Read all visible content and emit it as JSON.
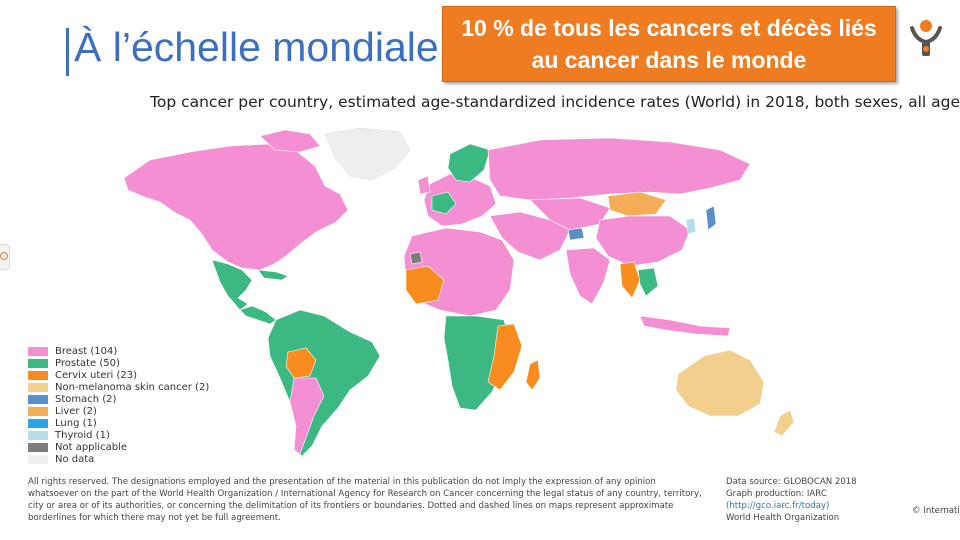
{
  "slide": {
    "title": "À l’échelle mondiale",
    "banner_line1": "10 % de tous les cancers et décès liés",
    "banner_line2": "au cancer dans le monde",
    "subtitle": "Top cancer per country, estimated age-standardized incidence rates (World) in 2018, both sexes, all ages"
  },
  "legend": [
    {
      "label": "Breast (104)",
      "color": "#f48fd3"
    },
    {
      "label": "Prostate (50)",
      "color": "#3cb883"
    },
    {
      "label": "Cervix uteri (23)",
      "color": "#f98c1e"
    },
    {
      "label": "Non-melanoma skin cancer (2)",
      "color": "#f2cf8c"
    },
    {
      "label": "Stomach (2)",
      "color": "#5b8fc7"
    },
    {
      "label": "Liver (2)",
      "color": "#f6ad58"
    },
    {
      "label": "Lung (1)",
      "color": "#2aa3e8"
    },
    {
      "label": "Thyroid (1)",
      "color": "#b6dcea"
    },
    {
      "label": "Not applicable",
      "color": "#7d7d7d"
    },
    {
      "label": "No data",
      "color": "#eeeeee"
    }
  ],
  "footer": {
    "disclaimer": "All rights reserved. The designations employed and the presentation of the material in this publication do not imply the expression of any opinion whatsoever on the part of the World Health Organization / International Agency for Research on Cancer concerning the legal status of any country, territory, city or area or of its authorities, or concerning the delimitation of its frontiers or boundaries. Dotted and dashed lines on maps represent approximate borderlines for which there may not yet be full agreement.",
    "source_line1": "Data source: GLOBOCAN 2018",
    "source_line2": "Graph production: IARC",
    "source_link": "(http://gco.iarc.fr/today)",
    "source_line4": "World Health Organization",
    "copyright": "© Internatio"
  },
  "colors": {
    "title": "#3d6fbf",
    "banner": "#f07c22",
    "breast": "#f48fd3",
    "prostate": "#3cb883",
    "cervix": "#f98c1e",
    "skin": "#f2cf8c",
    "stomach": "#5b8fc7",
    "liver": "#f6ad58",
    "lung": "#2aa3e8",
    "thyroid": "#b6dcea",
    "not_applicable": "#7d7d7d",
    "no_data": "#eeeeee"
  }
}
